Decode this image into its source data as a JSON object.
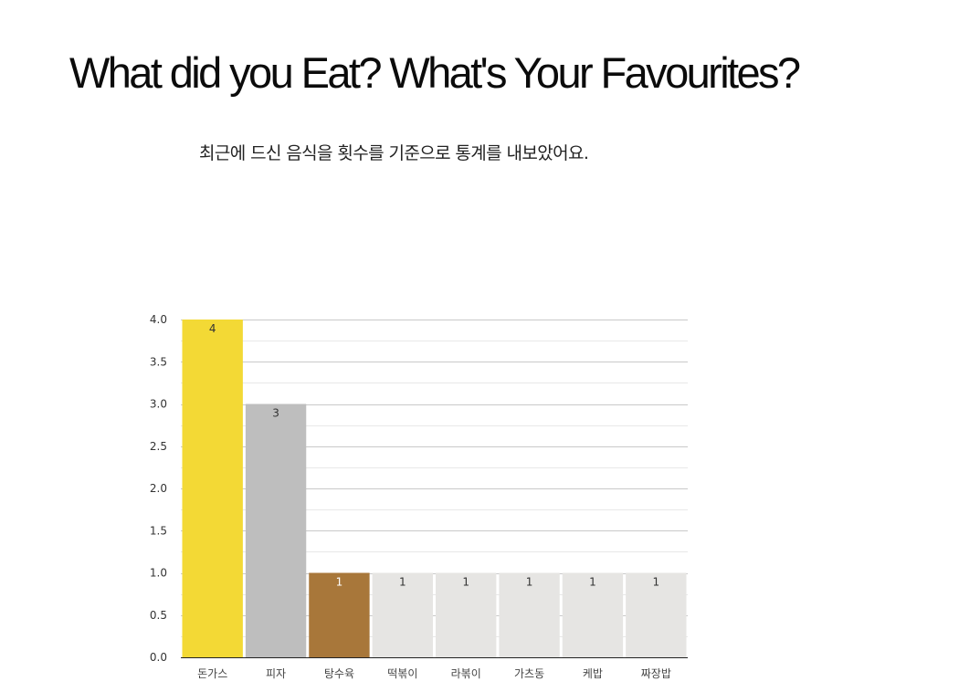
{
  "header": {
    "title": "What did you Eat? What's Your Favourites?",
    "subtitle": "최근에 드신 음식을 횟수를 기준으로 통계를 내보았어요."
  },
  "chart_data": {
    "type": "bar",
    "title": "",
    "xlabel": "",
    "ylabel": "",
    "categories": [
      "돈가스",
      "피자",
      "탕수육",
      "떡볶이",
      "라볶이",
      "가츠동",
      "케밥",
      "짜장밥"
    ],
    "values": [
      4,
      3,
      1,
      1,
      1,
      1,
      1,
      1
    ],
    "bar_colors": [
      "#f3d935",
      "#bebebe",
      "#a8773a",
      "#e6e5e3",
      "#e6e5e3",
      "#e6e5e3",
      "#e6e5e3",
      "#e6e5e3"
    ],
    "data_label_colors": [
      "#333333",
      "#333333",
      "#ffffff",
      "#333333",
      "#333333",
      "#333333",
      "#333333",
      "#333333"
    ],
    "ylim": [
      0,
      4
    ],
    "yticks": [
      "0.0",
      "0.5",
      "1.0",
      "1.5",
      "2.0",
      "2.5",
      "3.0",
      "3.5",
      "4.0"
    ],
    "grid": true,
    "legend": "none"
  }
}
